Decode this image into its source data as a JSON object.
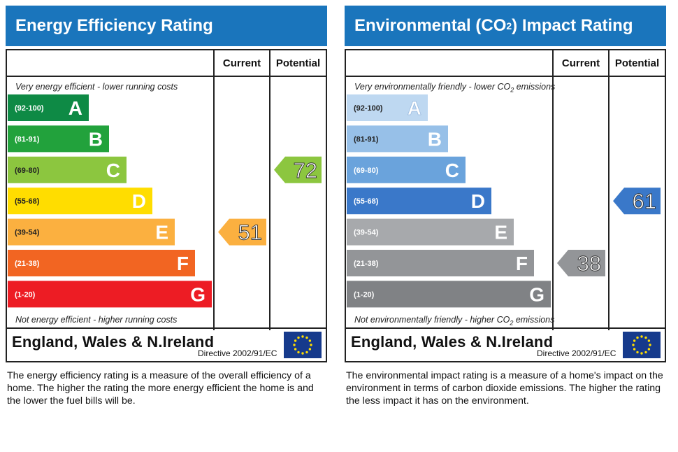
{
  "energy": {
    "title": "Energy Efficiency Rating",
    "col_current": "Current",
    "col_potential": "Potential",
    "top_note": "Very energy efficient - lower running costs",
    "bottom_note": "Not energy efficient - higher running costs",
    "footer_title": "England, Wales & N.Ireland",
    "directive": "Directive 2002/91/EC",
    "description": "The energy efficiency rating is a measure of the overall efficiency of a home. The higher the rating the more energy efficient the home is and the lower the fuel bills will be."
  },
  "environment": {
    "title_pre": "Environmental (CO",
    "title_sub": "2",
    "title_post": ") Impact Rating",
    "col_current": "Current",
    "col_potential": "Potential",
    "top_note_pre": "Very environmentally friendly - lower CO",
    "top_note_sub": "2",
    "top_note_post": " emissions",
    "bottom_note_pre": "Not environmentally friendly - higher CO",
    "bottom_note_sub": "2",
    "bottom_note_post": " emissions",
    "footer_title": "England, Wales & N.Ireland",
    "directive": "Directive 2002/91/EC",
    "description": "The environmental impact rating is a measure of a home's impact on the environment in terms of carbon dioxide emissions. The higher the rating the less impact it has on the environment."
  },
  "chart_data": [
    {
      "type": "bar",
      "title": "Energy Efficiency Rating",
      "categories": [
        "A",
        "B",
        "C",
        "D",
        "E",
        "F",
        "G"
      ],
      "ranges": [
        "(92-100)",
        "(81-91)",
        "(69-80)",
        "(55-68)",
        "(39-54)",
        "(21-38)",
        "(1-20)"
      ],
      "colors": [
        "#0e8a45",
        "#22a23c",
        "#8cc63f",
        "#ffdd00",
        "#fbb040",
        "#f26522",
        "#ed1c24"
      ],
      "current": {
        "label": "Current",
        "value": 51,
        "band": "E",
        "color": "#fbb040"
      },
      "potential": {
        "label": "Potential",
        "value": 72,
        "band": "C",
        "color": "#8cc63f"
      }
    },
    {
      "type": "bar",
      "title": "Environmental (CO2) Impact Rating",
      "categories": [
        "A",
        "B",
        "C",
        "D",
        "E",
        "F",
        "G"
      ],
      "ranges": [
        "(92-100)",
        "(81-91)",
        "(69-80)",
        "(55-68)",
        "(39-54)",
        "(21-38)",
        "(1-20)"
      ],
      "colors": [
        "#bed8f1",
        "#97c0e8",
        "#6aa3dc",
        "#3a78c9",
        "#a7a9ac",
        "#939598",
        "#808285"
      ],
      "current": {
        "label": "Current",
        "value": 38,
        "band": "F",
        "color": "#939598"
      },
      "potential": {
        "label": "Potential",
        "value": 61,
        "band": "D",
        "color": "#3a78c9"
      }
    }
  ]
}
